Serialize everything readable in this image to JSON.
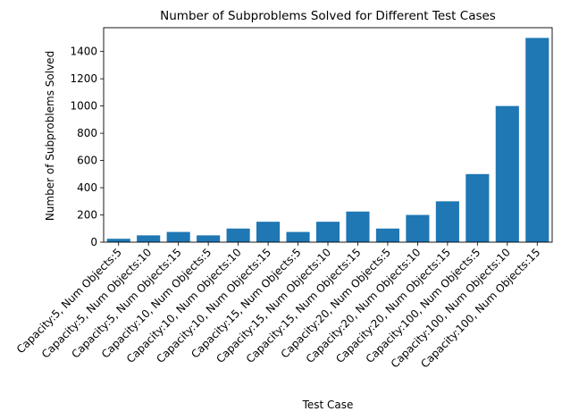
{
  "chart_data": {
    "type": "bar",
    "title": "Number of Subproblems Solved for Different Test Cases",
    "xlabel": "Test Case",
    "ylabel": "Number of Subproblems Solved",
    "ylim": [
      0,
      1575
    ],
    "yticks": [
      0,
      200,
      400,
      600,
      800,
      1000,
      1200,
      1400
    ],
    "grid": false,
    "bar_color": "#1f77b4",
    "categories": [
      "Capacity:5, Num Objects:5",
      "Capacity:5, Num Objects:10",
      "Capacity:5, Num Objects:15",
      "Capacity:10, Num Objects:5",
      "Capacity:10, Num Objects:10",
      "Capacity:10, Num Objects:15",
      "Capacity:15, Num Objects:5",
      "Capacity:15, Num Objects:10",
      "Capacity:15, Num Objects:15",
      "Capacity:20, Num Objects:5",
      "Capacity:20, Num Objects:10",
      "Capacity:20, Num Objects:15",
      "Capacity:100, Num Objects:5",
      "Capacity:100, Num Objects:10",
      "Capacity:100, Num Objects:15"
    ],
    "values": [
      25,
      50,
      75,
      50,
      100,
      150,
      75,
      150,
      225,
      100,
      200,
      300,
      500,
      1000,
      1500
    ]
  }
}
